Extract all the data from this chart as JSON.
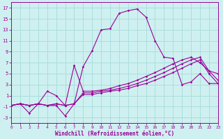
{
  "xlabel": "Windchill (Refroidissement éolien,°C)",
  "bg_color": "#cff0f0",
  "line_color": "#990099",
  "grid_color": "#aadddd",
  "xlim": [
    0,
    23
  ],
  "ylim": [
    -4,
    18
  ],
  "xticks": [
    0,
    1,
    2,
    3,
    4,
    5,
    6,
    7,
    8,
    9,
    10,
    11,
    12,
    13,
    14,
    15,
    16,
    17,
    18,
    19,
    20,
    21,
    22,
    23
  ],
  "yticks": [
    -3,
    -1,
    1,
    3,
    5,
    7,
    9,
    11,
    13,
    15,
    17
  ],
  "series": [
    {
      "x": [
        0,
        1,
        2,
        3,
        4,
        5,
        6,
        7,
        8,
        9,
        10,
        11,
        12,
        13,
        14,
        15,
        16,
        17,
        18,
        19,
        20,
        21,
        22,
        23
      ],
      "y": [
        -0.8,
        -0.5,
        -2.2,
        -0.5,
        -0.8,
        -0.8,
        -2.7,
        -0.5,
        6.3,
        9.2,
        13.0,
        13.2,
        16.0,
        16.5,
        16.8,
        15.3,
        11.0,
        8.0,
        7.8,
        3.0,
        3.5,
        5.0,
        3.2,
        3.2
      ]
    },
    {
      "x": [
        0,
        1,
        2,
        3,
        4,
        5,
        6,
        7,
        8,
        9,
        10,
        11,
        12,
        13,
        14,
        15,
        16,
        17,
        18,
        19,
        20,
        21,
        22,
        23
      ],
      "y": [
        -0.8,
        -0.5,
        -0.8,
        -0.5,
        1.8,
        1.0,
        -0.8,
        6.5,
        1.8,
        1.8,
        2.0,
        2.3,
        2.8,
        3.2,
        3.8,
        4.5,
        5.2,
        6.0,
        6.8,
        7.5,
        8.0,
        7.0,
        5.5,
        5.0
      ]
    },
    {
      "x": [
        0,
        1,
        2,
        3,
        4,
        5,
        6,
        7,
        8,
        9,
        10,
        11,
        12,
        13,
        14,
        15,
        16,
        17,
        18,
        19,
        20,
        21,
        22,
        23
      ],
      "y": [
        -0.8,
        -0.5,
        -0.8,
        -0.5,
        -0.8,
        -0.5,
        -0.8,
        -0.5,
        1.5,
        1.5,
        1.8,
        2.0,
        2.3,
        2.7,
        3.2,
        3.8,
        4.5,
        5.2,
        6.0,
        6.8,
        7.5,
        8.0,
        5.5,
        3.8
      ]
    },
    {
      "x": [
        0,
        1,
        2,
        3,
        4,
        5,
        6,
        7,
        8,
        9,
        10,
        11,
        12,
        13,
        14,
        15,
        16,
        17,
        18,
        19,
        20,
        21,
        22,
        23
      ],
      "y": [
        -0.8,
        -0.5,
        -0.8,
        -0.5,
        -0.8,
        -0.5,
        -0.8,
        -0.5,
        1.2,
        1.2,
        1.5,
        1.8,
        2.0,
        2.3,
        2.8,
        3.2,
        3.8,
        4.5,
        5.2,
        6.0,
        6.8,
        7.5,
        5.0,
        3.2
      ]
    }
  ]
}
